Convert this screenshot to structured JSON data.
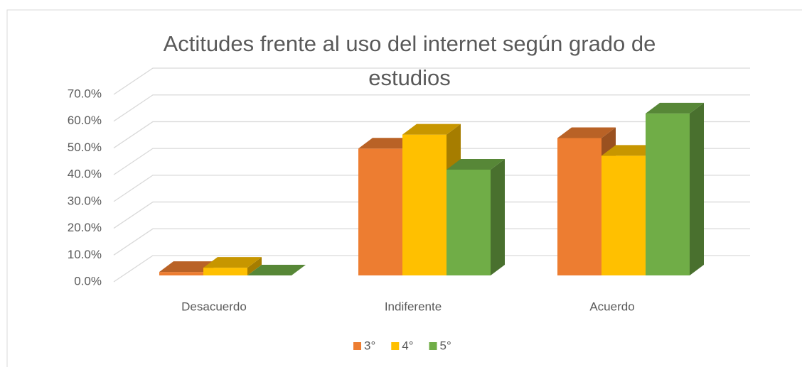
{
  "chart_data": {
    "type": "bar3d",
    "title": "Actitudes frente al uso del internet según grado de estudios",
    "categories": [
      "Desacuerdo",
      "Indiferente",
      "Acuerdo"
    ],
    "series": [
      {
        "name": "3°",
        "color": "#ED7D31",
        "values": [
          1.3,
          47.4,
          51.3
        ]
      },
      {
        "name": "4°",
        "color": "#FFC000",
        "values": [
          2.9,
          52.6,
          44.7
        ]
      },
      {
        "name": "5°",
        "color": "#70AD47",
        "values": [
          0.0,
          39.5,
          60.5
        ]
      }
    ],
    "ylim": [
      0,
      70
    ],
    "yticks": [
      {
        "value": 0,
        "label": "0.0%"
      },
      {
        "value": 10,
        "label": "10.0%"
      },
      {
        "value": 20,
        "label": "20.0%"
      },
      {
        "value": 30,
        "label": "30.0%"
      },
      {
        "value": 40,
        "label": "40.0%"
      },
      {
        "value": 50,
        "label": "50.0%"
      },
      {
        "value": 60,
        "label": "60.0%"
      },
      {
        "value": 70,
        "label": "70.0%"
      }
    ],
    "grid": true,
    "legend": "bottom"
  }
}
